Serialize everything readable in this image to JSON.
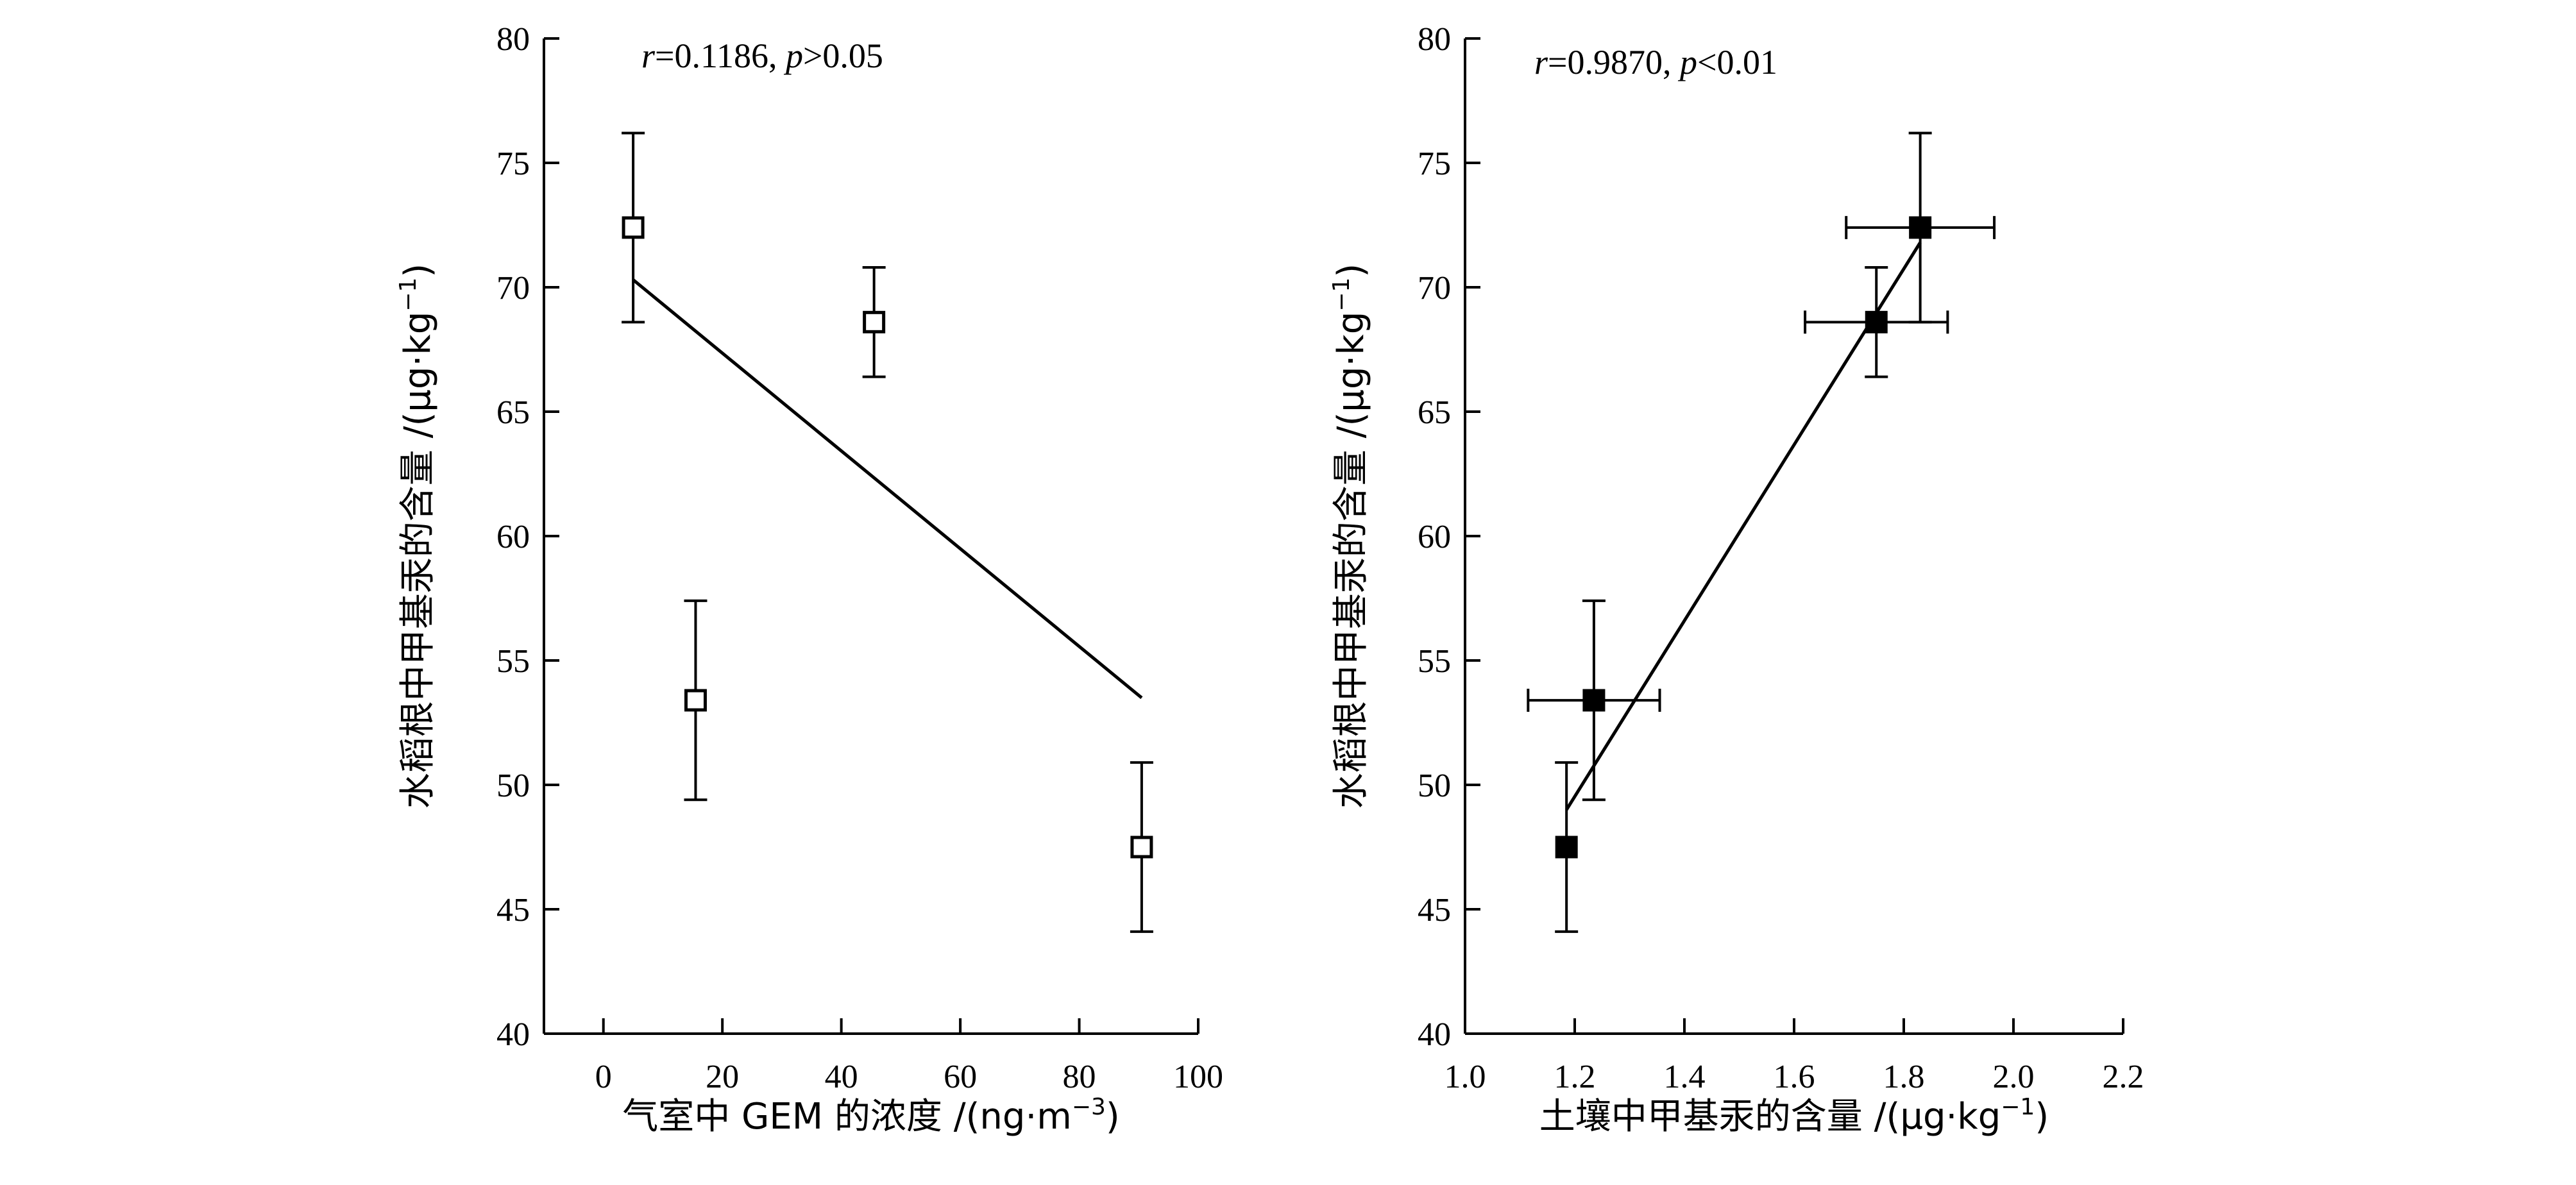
{
  "chart_data": [
    {
      "type": "scatter",
      "xlabel": "气室中 GEM 的浓度 /(ng·m",
      "xlabel_sup": "−3",
      "xlabel_end": ")",
      "ylabel": "水稻根中甲基汞的含量 /(μg·kg",
      "ylabel_sup": "−1",
      "ylabel_end": ")",
      "xlim": [
        -10,
        100
      ],
      "ylim": [
        40,
        80
      ],
      "xticks": [
        0,
        20,
        40,
        60,
        80,
        100
      ],
      "yticks": [
        40,
        45,
        50,
        55,
        60,
        65,
        70,
        75,
        80
      ],
      "xtick_labels": [
        "0",
        "20",
        "40",
        "60",
        "80",
        "100"
      ],
      "ytick_labels": [
        "40",
        "45",
        "50",
        "55",
        "60",
        "65",
        "70",
        "75",
        "80"
      ],
      "marker": "open-square",
      "annotation": {
        "r_symbol": "r",
        "r_value": "=0.1186,",
        "p_symbol": "p",
        "p_value": ">0.05"
      },
      "points": [
        {
          "x": 5,
          "y": 72.4,
          "yerr": 3.8
        },
        {
          "x": 15.5,
          "y": 53.4,
          "yerr": 4.0
        },
        {
          "x": 45.5,
          "y": 68.6,
          "yerr": 2.2
        },
        {
          "x": 90.5,
          "y": 47.5,
          "yerr": 3.4
        }
      ],
      "fit_line": {
        "x": [
          5,
          90.5
        ],
        "y": [
          70.3,
          53.5
        ]
      }
    },
    {
      "type": "scatter",
      "xlabel": "土壤中甲基汞的含量 /(μg·kg",
      "xlabel_sup": "−1",
      "xlabel_end": ")",
      "ylabel": "水稻根中甲基汞的含量 /(μg·kg",
      "ylabel_sup": "−1",
      "ylabel_end": ")",
      "xlim": [
        1.0,
        2.2
      ],
      "ylim": [
        40,
        80
      ],
      "xticks": [
        1.0,
        1.2,
        1.4,
        1.6,
        1.8,
        2.0,
        2.2
      ],
      "yticks": [
        40,
        45,
        50,
        55,
        60,
        65,
        70,
        75,
        80
      ],
      "xtick_labels": [
        "1.0",
        "1.2",
        "1.4",
        "1.6",
        "1.8",
        "2.0",
        "2.2"
      ],
      "ytick_labels": [
        "40",
        "45",
        "50",
        "55",
        "60",
        "65",
        "70",
        "75",
        "80"
      ],
      "marker": "filled-square",
      "annotation": {
        "r_symbol": "r",
        "r_value": "=0.9870,",
        "p_symbol": "p",
        "p_value": "<0.01"
      },
      "points": [
        {
          "x": 1.83,
          "y": 72.4,
          "xerr": 0.135,
          "yerr": 3.8
        },
        {
          "x": 1.75,
          "y": 68.6,
          "xerr": 0.13,
          "yerr": 2.2
        },
        {
          "x": 1.235,
          "y": 53.4,
          "xerr": 0.12,
          "yerr": 4.0
        },
        {
          "x": 1.185,
          "y": 47.5,
          "yerr": 3.4
        }
      ],
      "fit_line": {
        "x": [
          1.185,
          1.83
        ],
        "y": [
          49.0,
          71.8
        ]
      }
    }
  ]
}
